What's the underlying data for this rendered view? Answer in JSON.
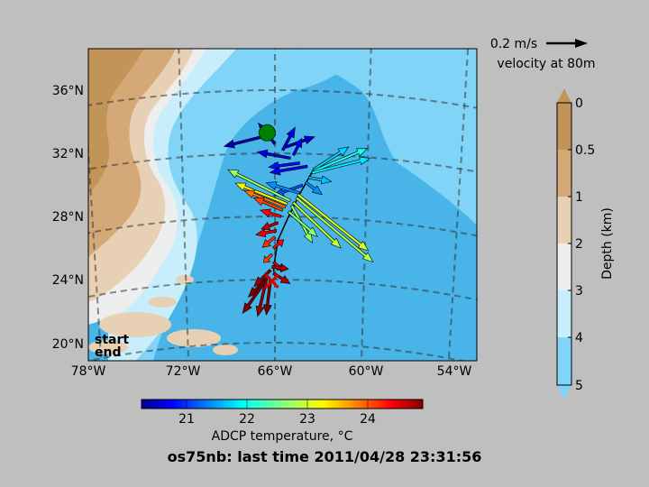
{
  "title": "os75nb: last time 2011/04/28 23:31:56",
  "colors": {
    "figure_bg": "#bfbfbf",
    "ocean_deep": "#48b4e8",
    "ocean_mid": "#7fd4f7",
    "ocean_shallow": "#c8eefb",
    "shelf": "#eeeeee",
    "land_light": "#e8d0b4",
    "land_mid": "#d4a877",
    "land_dark": "#c39457",
    "track": "#000000",
    "start": "#008000",
    "end": "#dd0000"
  },
  "map": {
    "lon_ticks": [
      "78°W",
      "72°W",
      "66°W",
      "60°W",
      "54°W"
    ],
    "lat_ticks": [
      "20°N",
      "24°N",
      "28°N",
      "32°N",
      "36°N"
    ],
    "lon_range": [
      -78,
      -52
    ],
    "lat_range": [
      19,
      39
    ]
  },
  "legend": {
    "start": "start",
    "end": "end"
  },
  "velocity_key": {
    "label": "0.2 m/s",
    "caption": "velocity at 80m"
  },
  "depth_colorbar": {
    "label": "Depth (km)",
    "ticks": [
      "0",
      "0.5",
      "1",
      "2",
      "3",
      "4",
      "5"
    ],
    "colors": [
      "#c39457",
      "#d4a877",
      "#e8d0b4",
      "#eeeeee",
      "#c8eefb",
      "#7fd4f7"
    ]
  },
  "temp_colorbar": {
    "label": "ADCP temperature, °C",
    "ticks": [
      "21",
      "22",
      "23",
      "24"
    ],
    "range": [
      20.25,
      24.9
    ]
  },
  "chart_data": {
    "type": "scatter",
    "title": "os75nb: last time 2011/04/28 23:31:56",
    "description_units": "lon °E, lat °N, u/v m/s, temperature °C",
    "track": [
      [
        -63.5,
        31.0
      ],
      [
        -64.4,
        29.4
      ],
      [
        -65.1,
        28.0
      ],
      [
        -65.8,
        26.5
      ],
      [
        -66.0,
        25.3
      ],
      [
        -66.1,
        24.5
      ]
    ],
    "start": {
      "lon": -66.5,
      "lat": 33.3
    },
    "end": {
      "lon": -66.2,
      "lat": 23.9
    },
    "vectors": [
      {
        "lon": -66.6,
        "lat": 33.1,
        "u": -0.2,
        "v": -0.05,
        "t": 20.5
      },
      {
        "lon": -66.0,
        "lat": 32.6,
        "u": -0.08,
        "v": 0.1,
        "t": 20.6
      },
      {
        "lon": -65.5,
        "lat": 32.2,
        "u": 0.06,
        "v": 0.11,
        "t": 20.7
      },
      {
        "lon": -65.3,
        "lat": 32.4,
        "u": 0.14,
        "v": 0.05,
        "t": 20.6
      },
      {
        "lon": -64.8,
        "lat": 31.9,
        "u": 0.04,
        "v": 0.08,
        "t": 20.8
      },
      {
        "lon": -65.0,
        "lat": 31.7,
        "u": -0.16,
        "v": 0.03,
        "t": 20.7
      },
      {
        "lon": -64.4,
        "lat": 31.4,
        "u": -0.15,
        "v": -0.02,
        "t": 20.9
      },
      {
        "lon": -63.9,
        "lat": 31.2,
        "u": -0.18,
        "v": -0.03,
        "t": 20.8
      },
      {
        "lon": -63.5,
        "lat": 31.0,
        "u": 0.17,
        "v": 0.11,
        "t": 21.8
      },
      {
        "lon": -63.5,
        "lat": 30.9,
        "u": 0.26,
        "v": 0.11,
        "t": 22.1
      },
      {
        "lon": -63.6,
        "lat": 30.8,
        "u": 0.28,
        "v": 0.07,
        "t": 21.9
      },
      {
        "lon": -63.8,
        "lat": 30.5,
        "u": 0.11,
        "v": -0.02,
        "t": 21.7
      },
      {
        "lon": -64.0,
        "lat": 30.2,
        "u": 0.08,
        "v": -0.06,
        "t": 21.5
      },
      {
        "lon": -64.2,
        "lat": 30.0,
        "u": -0.14,
        "v": -0.05,
        "t": 21.2
      },
      {
        "lon": -64.4,
        "lat": 29.5,
        "u": -0.16,
        "v": 0.05,
        "t": 21.5
      },
      {
        "lon": -64.5,
        "lat": 29.4,
        "u": 0.34,
        "v": -0.27,
        "t": 23.0
      },
      {
        "lon": -64.6,
        "lat": 29.2,
        "u": 0.37,
        "v": -0.31,
        "t": 22.8
      },
      {
        "lon": -64.8,
        "lat": 28.9,
        "u": 0.23,
        "v": -0.22,
        "t": 22.9
      },
      {
        "lon": -64.9,
        "lat": 28.7,
        "u": 0.1,
        "v": -0.18,
        "t": 22.7
      },
      {
        "lon": -65.1,
        "lat": 28.3,
        "u": 0.14,
        "v": -0.12,
        "t": 22.6
      },
      {
        "lon": -65.0,
        "lat": 29.0,
        "u": -0.3,
        "v": 0.15,
        "t": 22.7
      },
      {
        "lon": -65.2,
        "lat": 28.8,
        "u": -0.25,
        "v": 0.1,
        "t": 23.2
      },
      {
        "lon": -65.3,
        "lat": 28.6,
        "u": -0.2,
        "v": 0.08,
        "t": 23.8
      },
      {
        "lon": -65.5,
        "lat": 28.4,
        "u": -0.14,
        "v": 0.06,
        "t": 24.0
      },
      {
        "lon": -65.6,
        "lat": 28.0,
        "u": -0.1,
        "v": 0.03,
        "t": 24.3
      },
      {
        "lon": -65.8,
        "lat": 27.6,
        "u": -0.08,
        "v": -0.03,
        "t": 24.6
      },
      {
        "lon": -65.9,
        "lat": 27.1,
        "u": -0.1,
        "v": -0.02,
        "t": 24.4
      },
      {
        "lon": -66.0,
        "lat": 26.7,
        "u": -0.06,
        "v": -0.05,
        "t": 24.1
      },
      {
        "lon": -66.1,
        "lat": 26.0,
        "u": 0.05,
        "v": 0.04,
        "t": 24.3
      },
      {
        "lon": -66.2,
        "lat": 25.6,
        "u": -0.04,
        "v": -0.04,
        "t": 24.0
      },
      {
        "lon": -66.1,
        "lat": 25.1,
        "u": 0.05,
        "v": -0.04,
        "t": 24.5
      },
      {
        "lon": -66.2,
        "lat": 24.8,
        "u": 0.08,
        "v": -0.01,
        "t": 24.7
      },
      {
        "lon": -66.3,
        "lat": 24.6,
        "u": -0.08,
        "v": -0.08,
        "t": 24.8
      },
      {
        "lon": -66.1,
        "lat": 24.4,
        "u": 0.08,
        "v": -0.05,
        "t": 24.7
      },
      {
        "lon": -66.4,
        "lat": 24.2,
        "u": -0.1,
        "v": -0.1,
        "t": 24.9
      },
      {
        "lon": -66.5,
        "lat": 24.1,
        "u": -0.12,
        "v": -0.17,
        "t": 24.9
      },
      {
        "lon": -66.6,
        "lat": 23.9,
        "u": -0.04,
        "v": -0.17,
        "t": 24.8
      },
      {
        "lon": -66.3,
        "lat": 24.0,
        "u": -0.02,
        "v": -0.17,
        "t": 24.9
      }
    ]
  }
}
